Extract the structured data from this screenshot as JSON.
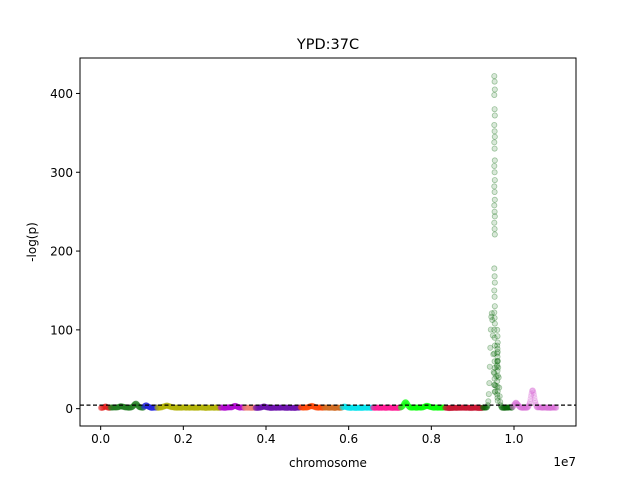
{
  "chart_data": {
    "type": "scatter",
    "title": "YPD:37C",
    "xlabel": "chromosome",
    "ylabel": "-log(p)",
    "x_offset_label": "1e7",
    "xlim": [
      -500000,
      11500000
    ],
    "ylim": [
      -22,
      445
    ],
    "x_ticks": [
      0,
      2000000,
      4000000,
      6000000,
      8000000,
      10000000
    ],
    "x_tick_labels": [
      "0.0",
      "0.2",
      "0.4",
      "0.6",
      "0.8",
      "1.0"
    ],
    "y_ticks": [
      0,
      100,
      200,
      300,
      400
    ],
    "y_tick_labels": [
      "0",
      "100",
      "200",
      "300",
      "400"
    ],
    "threshold": 4.5,
    "grid": false,
    "legend": "none",
    "segments": [
      {
        "chrom": 1,
        "start": 0,
        "end": 230000,
        "color": "#e31a1c",
        "base": 0.8,
        "bumps": [
          [
            120000,
            1.5,
            40000
          ]
        ]
      },
      {
        "chrom": 2,
        "start": 230000,
        "end": 1040000,
        "color": "#1a7a1a",
        "base": 1.0,
        "bumps": [
          [
            850000,
            5.0,
            60000
          ],
          [
            500000,
            1.5,
            80000
          ]
        ]
      },
      {
        "chrom": 3,
        "start": 1040000,
        "end": 1360000,
        "color": "#1f1fe0",
        "base": 1.0,
        "bumps": [
          [
            1100000,
            3.0,
            50000
          ]
        ]
      },
      {
        "chrom": 4,
        "start": 1360000,
        "end": 2890000,
        "color": "#b3b300",
        "base": 0.9,
        "bumps": [
          [
            1600000,
            2.5,
            100000
          ]
        ]
      },
      {
        "chrom": 5,
        "start": 2890000,
        "end": 3470000,
        "color": "#b000d0",
        "base": 1.0,
        "bumps": [
          [
            3250000,
            2.0,
            60000
          ]
        ]
      },
      {
        "chrom": 6,
        "start": 3470000,
        "end": 3740000,
        "color": "#f08070",
        "base": 0.8,
        "bumps": []
      },
      {
        "chrom": 7,
        "start": 3740000,
        "end": 4830000,
        "color": "#6a0dad",
        "base": 0.8,
        "bumps": [
          [
            3950000,
            1.5,
            60000
          ]
        ]
      },
      {
        "chrom": 8,
        "start": 4830000,
        "end": 5400000,
        "color": "#ff4500",
        "base": 1.0,
        "bumps": [
          [
            5100000,
            2.0,
            80000
          ]
        ]
      },
      {
        "chrom": 9,
        "start": 5400000,
        "end": 5840000,
        "color": "#d2691e",
        "base": 0.8,
        "bumps": []
      },
      {
        "chrom": 10,
        "start": 5840000,
        "end": 6580000,
        "color": "#00e5ee",
        "base": 0.8,
        "bumps": [
          [
            5900000,
            1.5,
            50000
          ]
        ]
      },
      {
        "chrom": 11,
        "start": 6580000,
        "end": 7250000,
        "color": "#ff1493",
        "base": 0.8,
        "bumps": []
      },
      {
        "chrom": 12,
        "start": 7250000,
        "end": 8330000,
        "color": "#00ff00",
        "base": 1.0,
        "bumps": [
          [
            7380000,
            7.0,
            60000
          ],
          [
            7900000,
            2.0,
            80000
          ]
        ]
      },
      {
        "chrom": 13,
        "start": 8330000,
        "end": 9240000,
        "color": "#c8102e",
        "base": 0.7,
        "bumps": []
      },
      {
        "chrom": 14,
        "start": 9240000,
        "end": 9960000,
        "color": "#006400",
        "base": 1.0,
        "bumps": [
          [
            9460000,
            120.0,
            50000
          ],
          [
            9600000,
            60.0,
            45000
          ]
        ]
      },
      {
        "chrom": 15,
        "start": 9960000,
        "end": 11030000,
        "color": "#da70d6",
        "base": 1.0,
        "bumps": [
          [
            10450000,
            22.0,
            60000
          ],
          [
            10050000,
            6.0,
            60000
          ]
        ]
      }
    ],
    "spikes": [
      {
        "x": 9530000,
        "color": "#006400",
        "y": [
          422,
          415,
          405,
          398,
          380,
          372,
          360,
          352,
          345,
          338,
          330,
          315,
          308,
          300,
          290,
          282,
          275,
          265,
          258,
          250,
          244,
          236,
          228,
          221,
          178,
          168,
          160,
          150,
          142,
          130,
          122,
          115,
          108,
          100,
          90,
          80,
          70,
          60,
          52,
          45,
          38,
          30
        ]
      },
      {
        "x": 9600000,
        "color": "#006400",
        "y": [
          100,
          92,
          84,
          80,
          76,
          72,
          70,
          66,
          60,
          55,
          48,
          42,
          35,
          28,
          22,
          18,
          14,
          10
        ]
      }
    ]
  }
}
